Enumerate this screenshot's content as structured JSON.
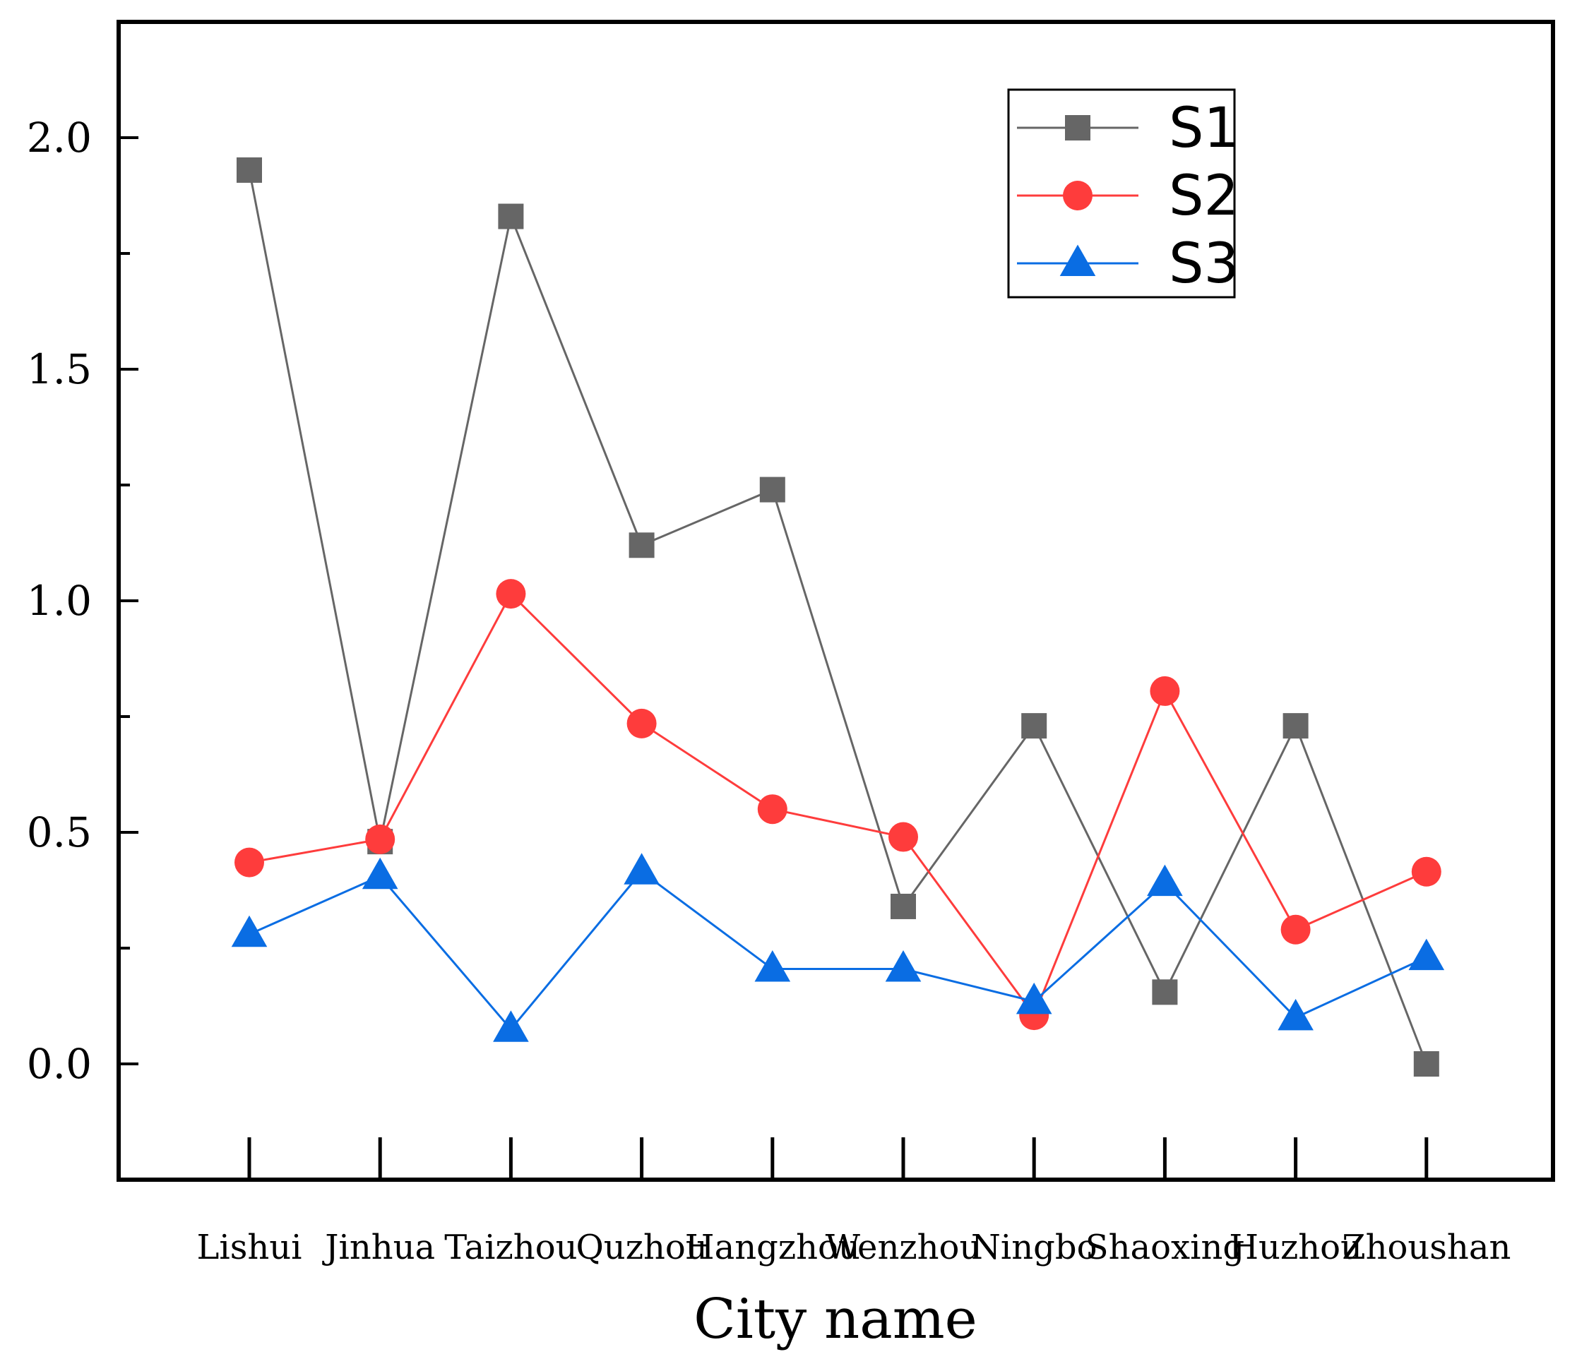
{
  "chart_data": {
    "type": "line",
    "title": "",
    "xlabel": "City name",
    "ylabel": "",
    "categories": [
      "Lishui",
      "Jinhua",
      "Taizhou",
      "Quzhou",
      "Hangzhou",
      "Wenzhou",
      "Ningbo",
      "Shaoxing",
      "Huzhou",
      "Zhoushan"
    ],
    "ylim": [
      -0.25,
      2.25
    ],
    "yticks": [
      0.0,
      0.5,
      1.0,
      1.5,
      2.0
    ],
    "ytick_labels": [
      "0.0",
      "0.5",
      "1.0",
      "1.5",
      "2.0"
    ],
    "minor_yticks": [
      0.25,
      0.75,
      1.25,
      1.75
    ],
    "grid": false,
    "legend_position": "top-right",
    "series": [
      {
        "name": "S1",
        "color": "#666666",
        "marker": "square",
        "values": [
          1.93,
          0.48,
          1.83,
          1.12,
          1.24,
          0.34,
          0.73,
          0.155,
          0.73,
          0.0
        ]
      },
      {
        "name": "S2",
        "color": "#fe3c3c",
        "marker": "circle",
        "values": [
          0.435,
          0.485,
          1.015,
          0.735,
          0.55,
          0.49,
          0.105,
          0.805,
          0.29,
          0.415
        ]
      },
      {
        "name": "S3",
        "color": "#0a6de3",
        "marker": "triangle",
        "values": [
          0.28,
          0.405,
          0.075,
          0.415,
          0.205,
          0.205,
          0.135,
          0.39,
          0.1,
          0.23
        ]
      }
    ]
  }
}
